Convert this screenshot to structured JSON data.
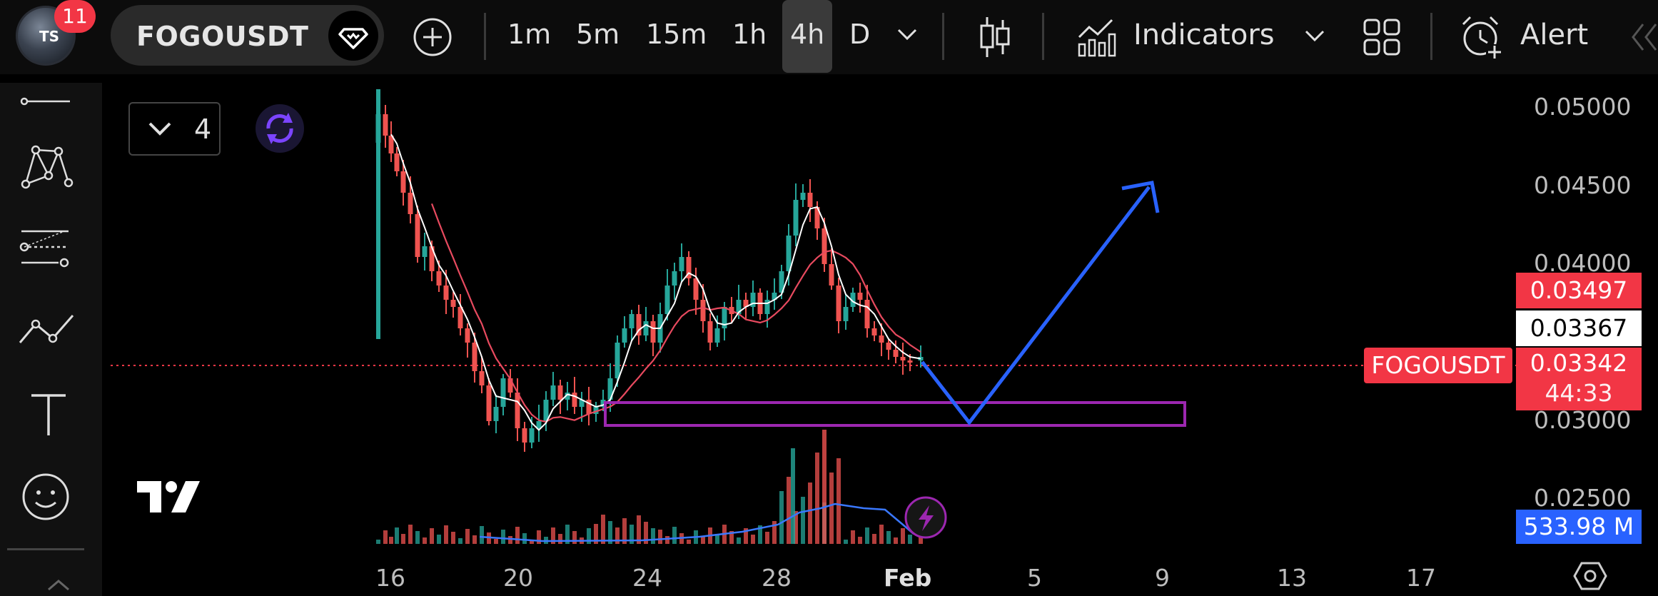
{
  "topbar": {
    "notification_count": "11",
    "avatar_mark": "TS",
    "symbol": "FOGOUSDT",
    "timeframes": [
      "1m",
      "5m",
      "15m",
      "1h",
      "4h",
      "D"
    ],
    "active_timeframe": "4h",
    "indicators_label": "Indicators",
    "alert_label": "Alert"
  },
  "legend": {
    "indicator_count": "4"
  },
  "price_axis": {
    "labels": [
      "0.05000",
      "0.04500",
      "0.04000",
      "0.03000",
      "0.02500"
    ],
    "tag_red_high": "0.03497",
    "tag_white": "0.03367",
    "tag_symbol": "FOGOUSDT",
    "tag_last_price": "0.03342",
    "tag_countdown": "44:33",
    "tag_volume": "533.98 M"
  },
  "time_axis": {
    "labels": [
      "16",
      "20",
      "24",
      "28",
      "Feb",
      "5",
      "9",
      "13",
      "17"
    ]
  },
  "colors": {
    "up": "#26a69a",
    "down": "#ef5350",
    "projection": "#2962ff",
    "zone": "#9c27b0",
    "badge": "#f23645"
  }
}
